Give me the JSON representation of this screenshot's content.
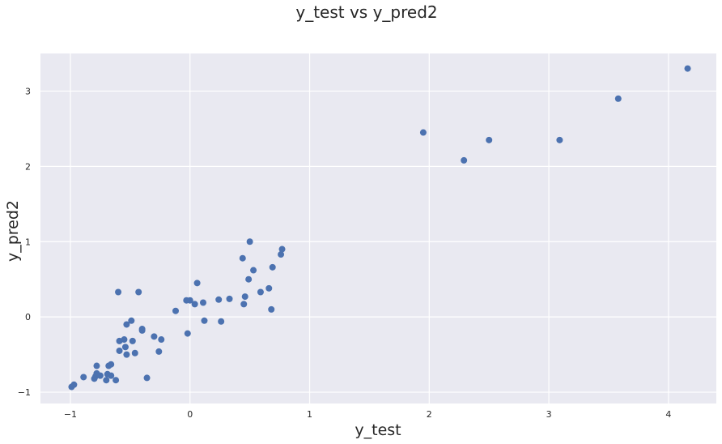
{
  "chart_data": {
    "type": "scatter",
    "title": "y_test vs y_pred2",
    "xlabel": "y_test",
    "ylabel": "y_pred2",
    "xlim": [
      -1.25,
      4.4
    ],
    "ylim": [
      -1.15,
      3.5
    ],
    "xticks": [
      -1,
      0,
      1,
      2,
      3,
      4
    ],
    "yticks": [
      -1,
      0,
      1,
      2,
      3
    ],
    "xtick_labels": [
      "−1",
      "0",
      "1",
      "2",
      "3",
      "4"
    ],
    "ytick_labels": [
      "−1",
      "0",
      "1",
      "2",
      "3"
    ],
    "grid": true,
    "point_color": "#4c72b0",
    "background_color": "#e9e9f1",
    "points": [
      {
        "x": -0.99,
        "y": -0.93
      },
      {
        "x": -0.97,
        "y": -0.9
      },
      {
        "x": -0.89,
        "y": -0.8
      },
      {
        "x": -0.8,
        "y": -0.82
      },
      {
        "x": -0.79,
        "y": -0.79
      },
      {
        "x": -0.78,
        "y": -0.75
      },
      {
        "x": -0.78,
        "y": -0.65
      },
      {
        "x": -0.75,
        "y": -0.78
      },
      {
        "x": -0.7,
        "y": -0.84
      },
      {
        "x": -0.69,
        "y": -0.76
      },
      {
        "x": -0.68,
        "y": -0.65
      },
      {
        "x": -0.66,
        "y": -0.63
      },
      {
        "x": -0.66,
        "y": -0.78
      },
      {
        "x": -0.62,
        "y": -0.84
      },
      {
        "x": -0.6,
        "y": 0.33
      },
      {
        "x": -0.59,
        "y": -0.32
      },
      {
        "x": -0.59,
        "y": -0.45
      },
      {
        "x": -0.55,
        "y": -0.3
      },
      {
        "x": -0.54,
        "y": -0.4
      },
      {
        "x": -0.53,
        "y": -0.5
      },
      {
        "x": -0.53,
        "y": -0.1
      },
      {
        "x": -0.49,
        "y": -0.05
      },
      {
        "x": -0.48,
        "y": -0.32
      },
      {
        "x": -0.46,
        "y": -0.48
      },
      {
        "x": -0.43,
        "y": 0.33
      },
      {
        "x": -0.4,
        "y": -0.16
      },
      {
        "x": -0.4,
        "y": -0.18
      },
      {
        "x": -0.36,
        "y": -0.81
      },
      {
        "x": -0.3,
        "y": -0.26
      },
      {
        "x": -0.26,
        "y": -0.46
      },
      {
        "x": -0.24,
        "y": -0.3
      },
      {
        "x": -0.12,
        "y": 0.08
      },
      {
        "x": -0.03,
        "y": 0.22
      },
      {
        "x": -0.02,
        "y": -0.22
      },
      {
        "x": 0.0,
        "y": 0.22
      },
      {
        "x": 0.04,
        "y": 0.17
      },
      {
        "x": 0.06,
        "y": 0.45
      },
      {
        "x": 0.11,
        "y": 0.19
      },
      {
        "x": 0.12,
        "y": -0.05
      },
      {
        "x": 0.24,
        "y": 0.23
      },
      {
        "x": 0.26,
        "y": -0.06
      },
      {
        "x": 0.33,
        "y": 0.24
      },
      {
        "x": 0.44,
        "y": 0.78
      },
      {
        "x": 0.45,
        "y": 0.17
      },
      {
        "x": 0.46,
        "y": 0.27
      },
      {
        "x": 0.49,
        "y": 0.5
      },
      {
        "x": 0.5,
        "y": 1.0
      },
      {
        "x": 0.53,
        "y": 0.62
      },
      {
        "x": 0.59,
        "y": 0.33
      },
      {
        "x": 0.66,
        "y": 0.38
      },
      {
        "x": 0.68,
        "y": 0.1
      },
      {
        "x": 0.69,
        "y": 0.66
      },
      {
        "x": 0.76,
        "y": 0.83
      },
      {
        "x": 0.77,
        "y": 0.9
      },
      {
        "x": 1.95,
        "y": 2.45
      },
      {
        "x": 2.29,
        "y": 2.08
      },
      {
        "x": 2.5,
        "y": 2.35
      },
      {
        "x": 3.09,
        "y": 2.35
      },
      {
        "x": 3.58,
        "y": 2.9
      },
      {
        "x": 4.16,
        "y": 3.3
      }
    ]
  }
}
